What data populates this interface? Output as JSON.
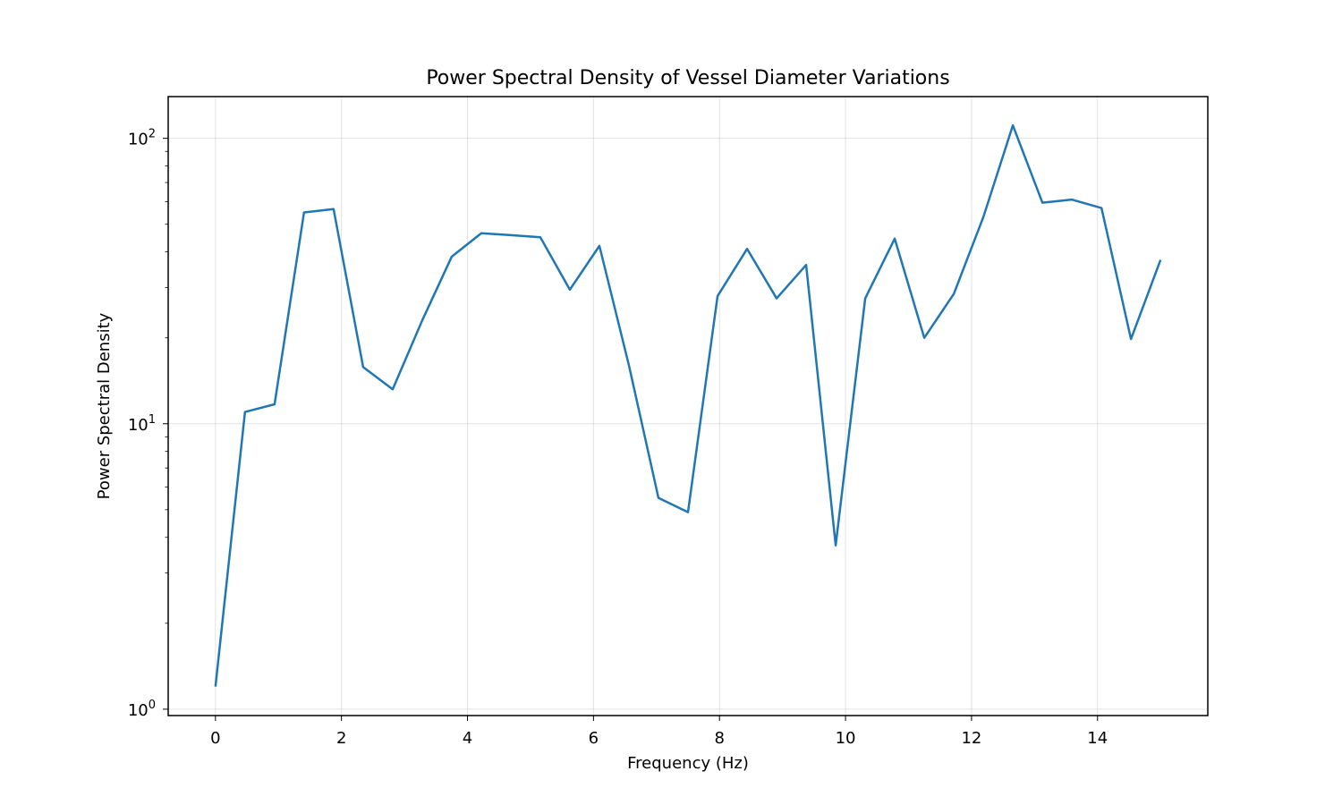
{
  "chart_data": {
    "type": "line",
    "title": "Power Spectral Density of Vessel Diameter Variations",
    "xlabel": "Frequency (Hz)",
    "ylabel": "Power Spectral Density",
    "xlim": [
      -0.75,
      15.75
    ],
    "ylim": [
      0.95,
      140
    ],
    "yscale": "log",
    "grid": true,
    "x_ticks": [
      0,
      2,
      4,
      6,
      8,
      10,
      12,
      14
    ],
    "x_tick_labels": [
      "0",
      "2",
      "4",
      "6",
      "8",
      "10",
      "12",
      "14"
    ],
    "y_ticks": [
      1,
      10,
      100
    ],
    "y_tick_labels": [
      {
        "base": "10",
        "exp": "0"
      },
      {
        "base": "10",
        "exp": "1"
      },
      {
        "base": "10",
        "exp": "2"
      }
    ],
    "line_color": "#1f77b4",
    "series": [
      {
        "x": [
          0,
          0.469,
          0.938,
          1.406,
          1.875,
          2.344,
          2.813,
          3.281,
          3.75,
          4.219,
          4.688,
          5.156,
          5.625,
          6.094,
          6.563,
          7.031,
          7.5,
          7.969,
          8.438,
          8.906,
          9.375,
          9.844,
          10.313,
          10.781,
          11.25,
          11.719,
          12.188,
          12.656,
          13.125,
          13.594,
          14.063,
          14.531,
          15.0
        ],
        "y": [
          1.2,
          11.0,
          11.7,
          55.0,
          56.5,
          15.8,
          13.2,
          23.0,
          38.5,
          46.5,
          45.8,
          45.0,
          29.5,
          42.0,
          16.0,
          5.5,
          4.9,
          28.0,
          41.0,
          27.5,
          36.0,
          3.75,
          27.5,
          44.5,
          20.0,
          28.5,
          53.0,
          111.0,
          59.5,
          61.0,
          57.0,
          19.8,
          37.5
        ]
      }
    ]
  }
}
